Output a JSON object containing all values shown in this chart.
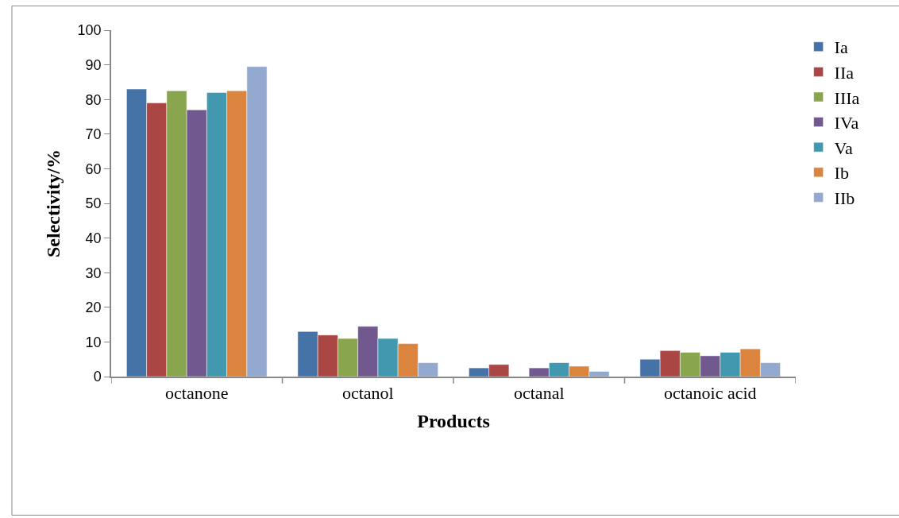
{
  "chart_data": {
    "type": "bar",
    "xlabel": "Products",
    "ylabel": "Selectivity/%",
    "categories": [
      "octanone",
      "octanol",
      "octanal",
      "octanoic acid"
    ],
    "series": [
      {
        "name": "Ia",
        "color": "#4572a7",
        "values": [
          83,
          13,
          2.5,
          5
        ]
      },
      {
        "name": "IIa",
        "color": "#aa4643",
        "values": [
          79,
          12,
          3.5,
          7.5
        ]
      },
      {
        "name": "IIIa",
        "color": "#89a54e",
        "values": [
          82.5,
          11,
          null,
          7
        ]
      },
      {
        "name": "IVa",
        "color": "#71588f",
        "values": [
          77,
          14.5,
          2.5,
          6
        ]
      },
      {
        "name": "Va",
        "color": "#4198af",
        "values": [
          82,
          11,
          4,
          7
        ]
      },
      {
        "name": "Ib",
        "color": "#db843d",
        "values": [
          82.5,
          9.5,
          3,
          8
        ]
      },
      {
        "name": "IIb",
        "color": "#93a9cf",
        "values": [
          89.5,
          4,
          1.5,
          4
        ]
      }
    ],
    "ylim": [
      0,
      100
    ],
    "yticks": [
      0,
      10,
      20,
      30,
      40,
      50,
      60,
      70,
      80,
      90,
      100
    ],
    "legend": "right"
  }
}
